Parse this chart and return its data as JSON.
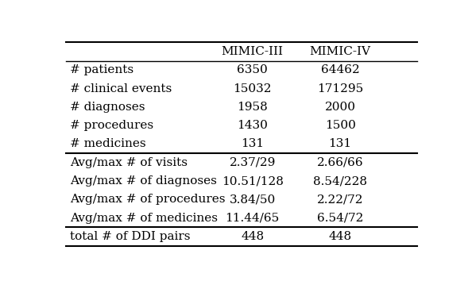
{
  "columns": [
    "",
    "MIMIC-III",
    "MIMIC-IV"
  ],
  "rows": [
    [
      "# patients",
      "6350",
      "64462"
    ],
    [
      "# clinical events",
      "15032",
      "171295"
    ],
    [
      "# diagnoses",
      "1958",
      "2000"
    ],
    [
      "# procedures",
      "1430",
      "1500"
    ],
    [
      "# medicines",
      "131",
      "131"
    ],
    [
      "Avg/max # of visits",
      "2.37/29",
      "2.66/66"
    ],
    [
      "Avg/max # of diagnoses",
      "10.51/128",
      "8.54/228"
    ],
    [
      "Avg/max # of procedures",
      "3.84/50",
      "2.22/72"
    ],
    [
      "Avg/max # of medicines",
      "11.44/65",
      "6.54/72"
    ],
    [
      "total # of DDI pairs",
      "448",
      "448"
    ]
  ],
  "bg_color": "#ffffff",
  "text_color": "#000000",
  "font_size": 11,
  "header_font_size": 11,
  "line_lw_thick": 1.5,
  "line_lw_thin": 1.0
}
